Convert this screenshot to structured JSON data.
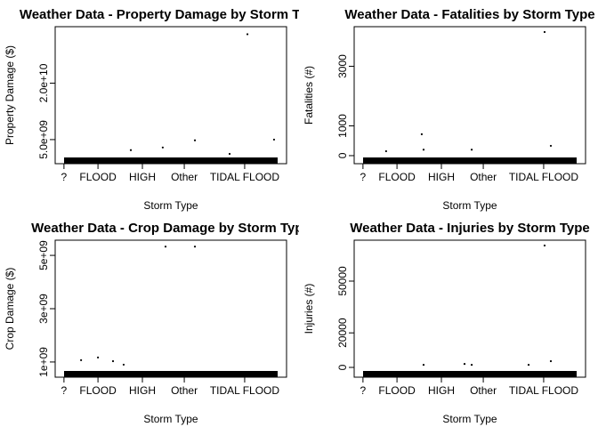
{
  "chart_data": [
    {
      "type": "scatter",
      "title": "Weather Data - Property Damage by Storm Type",
      "x_label": "Storm Type",
      "y_label": "Property Damage ($)",
      "x": [
        83.1,
        94.6,
        60.4,
        46.5,
        32.7,
        75.4
      ],
      "values": [
        33000000000,
        5000000000,
        4800000000,
        2900000000,
        2200000000,
        1200000000
      ],
      "color": "#000000",
      "xlim": [
        0,
        100
      ],
      "xticks": [
        {
          "value": 3.8,
          "label": "?"
        },
        {
          "value": 18.5,
          "label": "FLOOD"
        },
        {
          "value": 37.7,
          "label": "HIGH"
        },
        {
          "value": 55.8,
          "label": "Other"
        },
        {
          "value": 81.9,
          "label": "TIDAL FLOOD"
        }
      ],
      "ylim": [
        -1400000000,
        35000000000
      ],
      "yticks": [
        {
          "value": 5000000000,
          "label": "5.0e+09"
        },
        {
          "value": 20000000000,
          "label": "2.0e+10"
        }
      ]
    },
    {
      "type": "scatter",
      "title": "Weather Data - Fatalities by Storm Type",
      "x_label": "Storm Type",
      "y_label": "Fatalities (#)",
      "x": [
        82.3,
        29.2,
        85.0,
        30.0,
        50.8,
        13.8
      ],
      "values": [
        4150,
        720,
        330,
        200,
        200,
        150
      ],
      "color": "#000000",
      "xlim": [
        0,
        100
      ],
      "xticks": [
        {
          "value": 3.8,
          "label": "?"
        },
        {
          "value": 18.5,
          "label": "FLOOD"
        },
        {
          "value": 37.7,
          "label": "HIGH"
        },
        {
          "value": 55.8,
          "label": "Other"
        },
        {
          "value": 81.9,
          "label": "TIDAL FLOOD"
        }
      ],
      "ylim": [
        -270,
        4330
      ],
      "yticks": [
        0,
        1000,
        3000
      ]
    },
    {
      "type": "scatter",
      "title": "Weather Data - Crop Damage by Storm Type",
      "x_label": "Storm Type",
      "y_label": "Crop Damage ($)",
      "x": [
        47.7,
        60.4,
        25.0,
        18.5,
        11.2,
        29.6
      ],
      "values": [
        5330000000,
        5330000000,
        1030000000,
        1170000000,
        1070000000,
        900000000
      ],
      "color": "#000000",
      "xlim": [
        0,
        100
      ],
      "xticks": [
        {
          "value": 3.8,
          "label": "?"
        },
        {
          "value": 18.5,
          "label": "FLOOD"
        },
        {
          "value": 37.7,
          "label": "HIGH"
        },
        {
          "value": 55.8,
          "label": "Other"
        },
        {
          "value": 81.9,
          "label": "TIDAL FLOOD"
        }
      ],
      "ylim": [
        430000000,
        5570000000
      ],
      "yticks": [
        {
          "value": 1000000000,
          "label": "1e+09"
        },
        {
          "value": 3000000000,
          "label": "3e+09"
        },
        {
          "value": 5000000000,
          "label": "5e+09"
        }
      ]
    },
    {
      "type": "scatter",
      "title": "Weather Data - Injuries by Storm Type",
      "x_label": "Storm Type",
      "y_label": "Injuries (#)",
      "x": [
        82.3,
        85.0,
        30.0,
        47.7,
        50.8,
        75.4
      ],
      "values": [
        70600,
        3600,
        1500,
        2000,
        1500,
        1500
      ],
      "color": "#000000",
      "xlim": [
        0,
        100
      ],
      "xticks": [
        {
          "value": 3.8,
          "label": "?"
        },
        {
          "value": 18.5,
          "label": "FLOOD"
        },
        {
          "value": 37.7,
          "label": "HIGH"
        },
        {
          "value": 55.8,
          "label": "Other"
        },
        {
          "value": 81.9,
          "label": "TIDAL FLOOD"
        }
      ],
      "ylim": [
        -5670,
        73700
      ],
      "yticks": [
        0,
        20000,
        50000
      ]
    }
  ]
}
